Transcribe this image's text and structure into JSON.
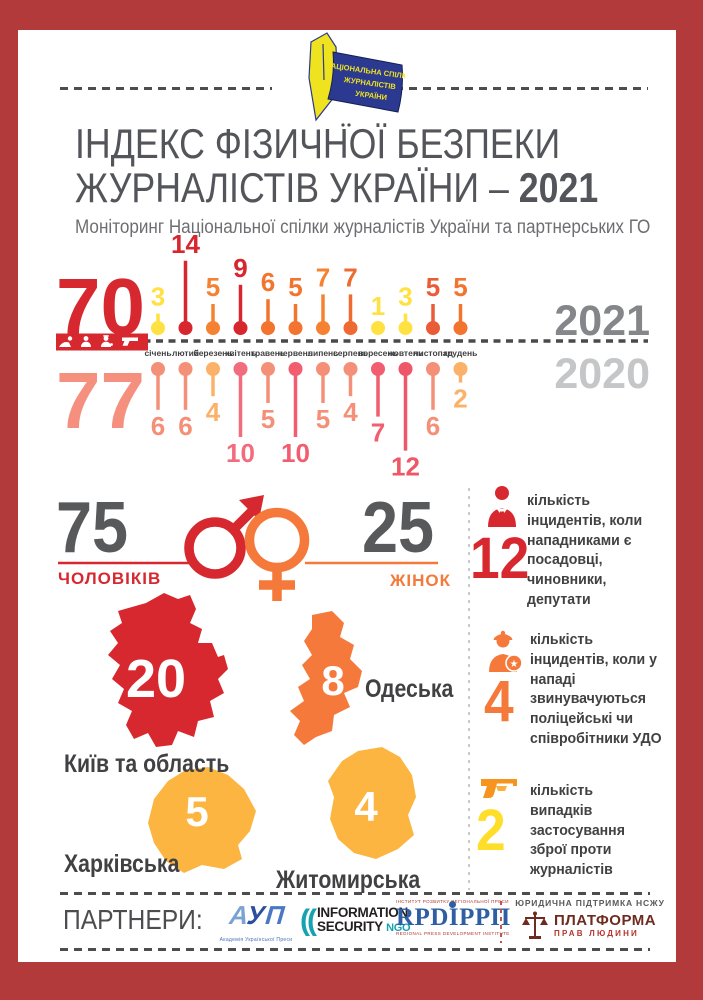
{
  "colors": {
    "frame": "#B23A3A",
    "red": "#D7282F",
    "orange": "#F4793B",
    "yellow": "#FFE141",
    "amber": "#FBB540",
    "pink": "#F5907E",
    "gray_dark": "#58595B",
    "gray_2021": "#848689",
    "gray_2020": "#C4C6C8"
  },
  "logo": {
    "line1": "НАЦІОНАЛЬНА СПІЛКА",
    "line2": "ЖУРНАЛІСТІВ",
    "line3": "УКРАЇНИ"
  },
  "header": {
    "title_line1": "ІНДЕКС ФІЗИЧНОЇ БЕЗПЕКИ",
    "title_line2_prefix": "ЖУРНАЛІСТІВ УКРАЇНИ – ",
    "title_year": "2021",
    "subtitle": "Моніторинг Національної спілки журналістів України та партнерських ГО"
  },
  "chart_data": {
    "type": "lollipop-timeline",
    "title": "ІНДЕКС ФІЗИЧНОЇ БЕЗПЕКИ ЖУРНАЛІСТІВ УКРАЇНИ – 2021",
    "categories": [
      "січень",
      "лютий",
      "березень",
      "квітень",
      "травень",
      "червень",
      "липень",
      "серпень",
      "вересень",
      "жовтень",
      "листопад",
      "грудень"
    ],
    "series": [
      {
        "name": "2021",
        "total": "70",
        "direction": "up",
        "total_color": "#D7282F",
        "year_label_color": "#848689",
        "values": [
          3,
          14,
          5,
          9,
          6,
          5,
          7,
          7,
          1,
          3,
          5,
          5
        ],
        "colors": [
          "#FFE141",
          "#D7262E",
          "#F58232",
          "#D7262E",
          "#F2742F",
          "#F2742F",
          "#F58232",
          "#EE6A30",
          "#FFE141",
          "#FFE141",
          "#EA5B38",
          "#F2742F"
        ]
      },
      {
        "name": "2020",
        "total": "77",
        "direction": "down",
        "total_color": "#F5907E",
        "year_label_color": "#C4C6C8",
        "values": [
          6,
          6,
          4,
          10,
          5,
          10,
          5,
          4,
          7,
          12,
          6,
          2
        ],
        "colors": [
          "#F59078",
          "#F59078",
          "#FBB268",
          "#F16C7C",
          "#F59078",
          "#F05E70",
          "#F59078",
          "#F59078",
          "#F05E70",
          "#EE5767",
          "#F59078",
          "#FBB268"
        ]
      }
    ]
  },
  "gender": {
    "male_value": "75",
    "male_label": "ЧОЛОВІКІВ",
    "male_color": "#D7282F",
    "female_value": "25",
    "female_label": "ЖІНОК",
    "female_color": "#F4793B"
  },
  "regions": [
    {
      "name": "Київ та область",
      "value": "20",
      "color": "#D7282F"
    },
    {
      "name": "Одеська",
      "value": "8",
      "color": "#F4793B"
    },
    {
      "name": "Харківська",
      "value": "5",
      "color": "#FBB540"
    },
    {
      "name": "Житомирська",
      "value": "4",
      "color": "#FBB540"
    }
  ],
  "stats": [
    {
      "value": "12",
      "color": "#D7282F",
      "icon": "official-icon",
      "text": "кількість інцидентів, коли нападниками є посадовці, чиновники, депутати"
    },
    {
      "value": "4",
      "color": "#F4793B",
      "icon": "police-icon",
      "text": "кількість інцидентів, коли у нападі звинувачуються поліцейські чи співробітники УДО"
    },
    {
      "value": "2",
      "color": "#FFDE2A",
      "icon": "gun-icon",
      "text": "кількість випадків застосування зброї проти журналістів"
    }
  ],
  "partners": {
    "label": "ПАРТНЕРИ:",
    "aup_caption": "Академія Української Преси",
    "aup_mark": "АУП",
    "infosec_line1": "INFORMATION",
    "infosec_line2": "SECURITY",
    "infosec_ngo": "NGO",
    "rpdi_top": "ІНСТИТУТ РОЗВИТКУ РЕГІОНАЛЬНОЇ ПРЕСИ",
    "rpdi_main": "RPDІРРП",
    "rpdi_bottom": "REGIONAL PRESS DEVELOPMENT INSTITUTE",
    "legal_support": "ЮРИДИЧНА ПІДТРИМКА НСЖУ",
    "platform_line1": "ПЛАТФОРМА",
    "platform_line2": "ПРАВ ЛЮДИНИ"
  }
}
